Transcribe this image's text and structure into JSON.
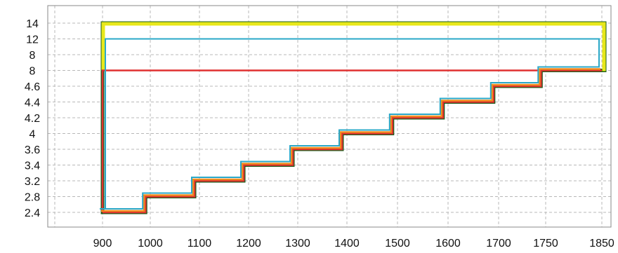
{
  "chart_data": {
    "type": "line",
    "title": "",
    "xlabel": "",
    "ylabel": "",
    "grid": true,
    "legend": "none",
    "x_tick_labels": [
      "900",
      "1000",
      "1100",
      "1200",
      "1300",
      "1400",
      "1500",
      "1600",
      "1700",
      "1750",
      "1850"
    ],
    "y_tick_labels": [
      "14",
      "12",
      "8",
      "8",
      "4.6",
      "4.4",
      "4.2",
      "4",
      "3.6",
      "3.4",
      "3.2",
      "2.8",
      "2.4"
    ],
    "y_axis_scale": "categorical (unevenly spaced labels, listed top to bottom)",
    "step_profile": {
      "x": [
        900,
        990,
        1090,
        1190,
        1290,
        1390,
        1490,
        1590,
        1690,
        1745,
        1850
      ],
      "y": [
        2.4,
        2.8,
        3.2,
        3.4,
        3.6,
        4,
        4.2,
        4.4,
        4.6,
        8,
        8
      ]
    },
    "series": [
      {
        "color": "#1a5c1a",
        "style": "outline of profile with top at 14",
        "top": 14
      },
      {
        "color": "#e8e81a",
        "style": "outline of profile with top at 14",
        "top": 14
      },
      {
        "color": "#e03030",
        "style": "profile rising to 8",
        "top": 8
      },
      {
        "color": "#f08c1e",
        "style": "step profile"
      },
      {
        "color": "#2aa8c8",
        "style": "outline of profile with top at 12",
        "top": 12
      }
    ]
  }
}
